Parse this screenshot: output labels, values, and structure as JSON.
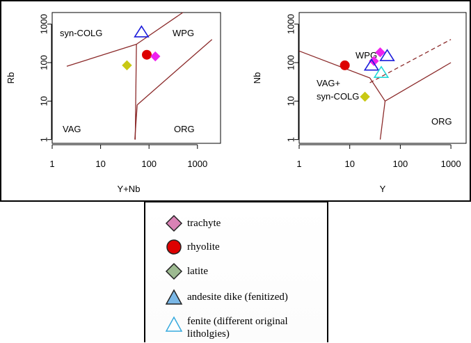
{
  "chart_data": [
    {
      "type": "scatter",
      "xlabel": "Y+Nb",
      "ylabel": "Rb",
      "x_scale": "log",
      "y_scale": "log",
      "xlim": [
        1,
        3000
      ],
      "ylim": [
        0.8,
        2000
      ],
      "xticks": [
        1,
        10,
        100,
        1000
      ],
      "yticks": [
        1,
        10,
        100,
        1000
      ],
      "xtick_labels": [
        "1",
        "10",
        "100",
        "1000"
      ],
      "ytick_labels": [
        "1",
        "10",
        "100",
        "1000"
      ],
      "field_labels": [
        "syn-COLG",
        "WPG",
        "VAG",
        "ORG"
      ],
      "boundaries": [
        {
          "style": "solid",
          "points": [
            [
              2,
              80
            ],
            [
              55,
              300
            ]
          ]
        },
        {
          "style": "solid",
          "points": [
            [
              55,
              300
            ],
            [
              500,
              2000
            ]
          ]
        },
        {
          "style": "solid",
          "points": [
            [
              55,
              300
            ],
            [
              52,
              1
            ]
          ]
        },
        {
          "style": "solid",
          "points": [
            [
              57,
              8
            ],
            [
              2000,
              400
            ]
          ]
        },
        {
          "style": "solid",
          "points": [
            [
              57,
              8
            ],
            [
              51,
              1
            ]
          ]
        }
      ],
      "points": [
        {
          "series": "andesite dike (fenitized)",
          "x": 70,
          "y": 620
        },
        {
          "series": "rhyolite",
          "x": 90,
          "y": 160
        },
        {
          "series": "trachyte",
          "x": 135,
          "y": 145
        },
        {
          "series": "latite",
          "x": 35,
          "y": 85
        }
      ]
    },
    {
      "type": "scatter",
      "xlabel": "Y",
      "ylabel": "Nb",
      "x_scale": "log",
      "y_scale": "log",
      "xlim": [
        1,
        2000
      ],
      "ylim": [
        0.8,
        2000
      ],
      "xticks": [
        1,
        10,
        100,
        1000
      ],
      "yticks": [
        1,
        10,
        100,
        1000
      ],
      "xtick_labels": [
        "1",
        "10",
        "100",
        "1000"
      ],
      "ytick_labels": [
        "1",
        "10",
        "100",
        "1000"
      ],
      "field_labels": [
        "WPG",
        "VAG+",
        "syn-COLG",
        "ORG"
      ],
      "boundaries": [
        {
          "style": "solid",
          "points": [
            [
              1,
              200
            ],
            [
              25,
              40
            ],
            [
              50,
              10
            ]
          ]
        },
        {
          "style": "solid",
          "points": [
            [
              50,
              10
            ],
            [
              1000,
              100
            ]
          ]
        },
        {
          "style": "solid",
          "points": [
            [
              50,
              10
            ],
            [
              40,
              1
            ]
          ]
        },
        {
          "style": "dashed",
          "points": [
            [
              25,
              30
            ],
            [
              1000,
              400
            ]
          ]
        }
      ],
      "points": [
        {
          "series": "trachyte",
          "x": 40,
          "y": 185
        },
        {
          "series": "trachyte",
          "x": 30,
          "y": 110
        },
        {
          "series": "rhyolite",
          "x": 8,
          "y": 85
        },
        {
          "series": "andesite dike (fenitized)",
          "x": 55,
          "y": 150
        },
        {
          "series": "andesite dike (fenitized)",
          "x": 27,
          "y": 85
        },
        {
          "series": "fenite (different original litholgies)",
          "x": 42,
          "y": 55
        },
        {
          "series": "latite",
          "x": 20,
          "y": 13
        }
      ]
    }
  ],
  "legend": {
    "items": [
      {
        "label": "trachyte",
        "marker": "diamond",
        "fill": "#d982b5",
        "stroke": "#222222"
      },
      {
        "label": "rhyolite",
        "marker": "circle",
        "fill": "#dd0000",
        "stroke": "#222222"
      },
      {
        "label": "latite",
        "marker": "diamond",
        "fill": "#9dba91",
        "stroke": "#222222"
      },
      {
        "label": "andesite dike (fenitized)",
        "marker": "triangle",
        "fill": "#7ab7e6",
        "stroke": "#222222"
      },
      {
        "label": "fenite (different original litholgies)",
        "marker": "triangle-open",
        "fill": "#ffffff",
        "stroke": "#35a9dd"
      }
    ]
  },
  "plot_markers": {
    "trachyte": {
      "shape": "diamond",
      "fill": "#ee22ee",
      "stroke": "#ee22ee"
    },
    "rhyolite": {
      "shape": "circle",
      "fill": "#dd0000",
      "stroke": "#dd0000"
    },
    "latite": {
      "shape": "diamond",
      "fill": "#c8c814",
      "stroke": "#c8c814"
    },
    "andesite dike (fenitized)": {
      "shape": "triangle-open",
      "fill": "none",
      "stroke": "#1a1adb"
    },
    "fenite (different original litholgies)": {
      "shape": "triangle-open",
      "fill": "none",
      "stroke": "#22d8d8"
    }
  },
  "colors": {
    "boundary": "#8b2a2a",
    "axis": "#000000"
  }
}
